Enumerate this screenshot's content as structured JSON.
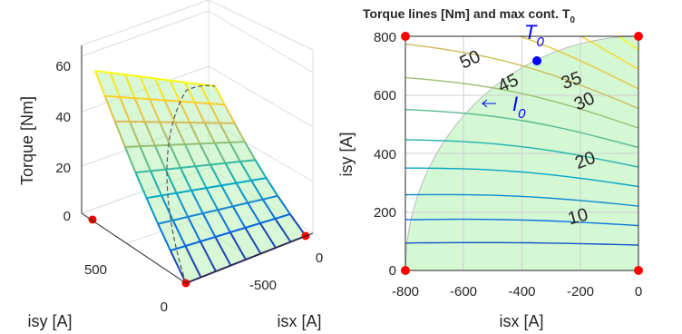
{
  "chart_data": [
    {
      "type": "surface",
      "xlabel": "isx [A]",
      "ylabel": "isy [A]",
      "zlabel": "Torque [Nm]",
      "x_range": [
        -800,
        0
      ],
      "y_range": [
        0,
        800
      ],
      "z_range": [
        0,
        60
      ],
      "x_ticks": [
        "-500",
        "0"
      ],
      "y_ticks": [
        "0",
        "500"
      ],
      "z_ticks": [
        "0",
        "20",
        "40",
        "60"
      ],
      "surface_grid_lines_per_axis": 9,
      "surface_values_corner": {
        "isx_-800_isy_800": 55,
        "isx_0_isy_800": 50,
        "isx_-800_isy_0": 0,
        "isx_0_isy_0": 0
      },
      "current_limit_circle_A": 800,
      "colormap": "parula",
      "region_fill_color": "#b6f0b6",
      "marker_color": "#ff0000"
    },
    {
      "type": "contour",
      "title": "Torque lines [Nm] and max cont. T",
      "title_sub": "0",
      "xlabel": "isx [A]",
      "ylabel": "isy [A]",
      "xlim": [
        -800,
        0
      ],
      "ylim": [
        0,
        800
      ],
      "x_ticks": [
        "-800",
        "-600",
        "-400",
        "-200",
        "0"
      ],
      "y_ticks": [
        "0",
        "200",
        "400",
        "600",
        "800"
      ],
      "grid": true,
      "contour_levels": [
        5,
        10,
        15,
        20,
        25,
        30,
        35,
        40,
        45,
        50,
        55
      ],
      "labeled_levels": [
        {
          "text": "10",
          "isx": -215,
          "isy": 205
        },
        {
          "text": "20",
          "isx": -200,
          "isy": 425
        },
        {
          "text": "30",
          "isx": -205,
          "isy": 635
        },
        {
          "text": "35",
          "isx": -235,
          "isy": 695
        },
        {
          "text": "45",
          "isx": -430,
          "isy": 765
        },
        {
          "text": "50",
          "isx": -560,
          "isy": 780
        }
      ],
      "current_limit_A": 800,
      "region_fill_color": "#d4f7d4",
      "operating_point": {
        "isx": -350,
        "isy": 730,
        "color": "#0000ff"
      },
      "annotations": [
        {
          "text": "T",
          "sub": "0",
          "isx": -360,
          "isy": 800,
          "color": "#0000ff"
        },
        {
          "text": "I",
          "sub": "0",
          "isx": -370,
          "isy": 570,
          "color": "#0000ff",
          "arrow": true
        }
      ],
      "corner_markers": [
        [
          -800,
          0
        ],
        [
          0,
          0
        ],
        [
          -800,
          800
        ],
        [
          0,
          800
        ]
      ],
      "marker_color": "#ff0000"
    }
  ]
}
